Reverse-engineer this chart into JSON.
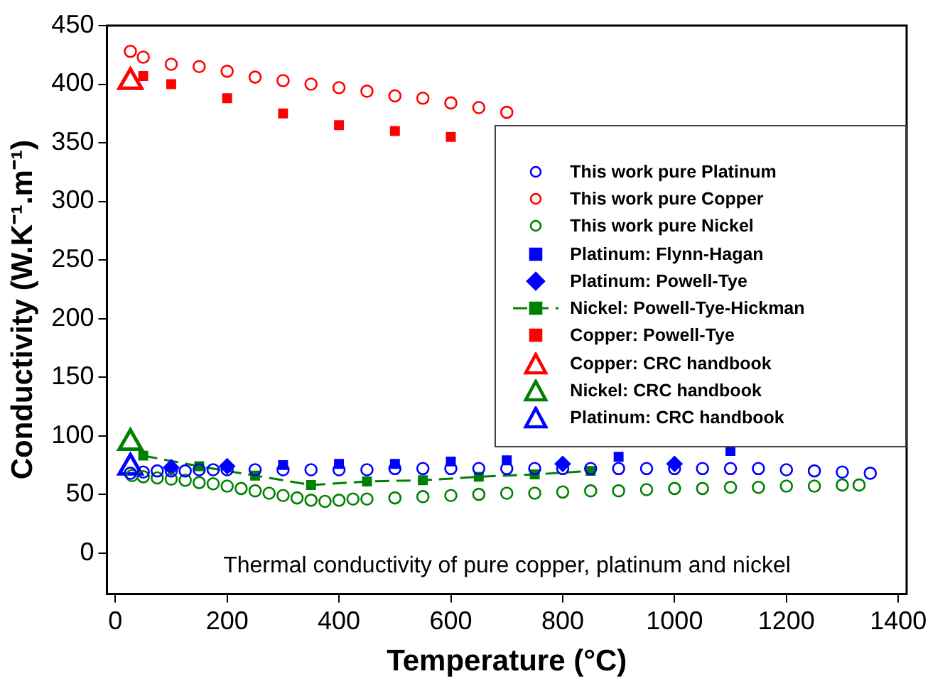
{
  "chart_data": {
    "type": "scatter",
    "xlabel": "Temperature (°C)",
    "ylabel": "Conductivity (W.K⁻¹.m⁻¹)",
    "xlim": [
      -15,
      1415
    ],
    "ylim": [
      -35,
      450
    ],
    "xticks": [
      0,
      200,
      400,
      600,
      800,
      1000,
      1200,
      1400
    ],
    "yticks": [
      0,
      50,
      100,
      150,
      200,
      250,
      300,
      350,
      400,
      450
    ],
    "legend": "right",
    "grid": false,
    "annotations": [
      "Thermal conductivity of pure copper, platinum and nickel"
    ],
    "series": [
      {
        "name": "This work pure Platinum",
        "color": "#0000ff",
        "marker": "circle",
        "x": [
          27,
          50,
          75,
          100,
          125,
          150,
          175,
          200,
          250,
          300,
          350,
          400,
          450,
          500,
          550,
          600,
          650,
          700,
          750,
          800,
          850,
          900,
          950,
          1000,
          1050,
          1100,
          1150,
          1200,
          1250,
          1300,
          1350
        ],
        "values": [
          68,
          69,
          70,
          70,
          70,
          71,
          71,
          71,
          71,
          71,
          71,
          71,
          71,
          72,
          72,
          72,
          72,
          72,
          72,
          72,
          72,
          72,
          72,
          72,
          72,
          72,
          72,
          71,
          70,
          69,
          68
        ]
      },
      {
        "name": "This work pure Copper",
        "color": "#ff0000",
        "marker": "circle",
        "x": [
          27,
          50,
          100,
          150,
          200,
          250,
          300,
          350,
          400,
          450,
          500,
          550,
          600,
          650,
          700
        ],
        "values": [
          428,
          423,
          417,
          415,
          411,
          406,
          403,
          400,
          397,
          394,
          390,
          388,
          384,
          380,
          376
        ]
      },
      {
        "name": "This work pure Nickel",
        "color": "#008000",
        "marker": "circle",
        "x": [
          30,
          50,
          75,
          100,
          125,
          150,
          175,
          200,
          225,
          250,
          275,
          300,
          325,
          350,
          375,
          400,
          425,
          450,
          500,
          550,
          600,
          650,
          700,
          750,
          800,
          850,
          900,
          950,
          1000,
          1050,
          1100,
          1150,
          1200,
          1250,
          1300,
          1330
        ],
        "values": [
          66,
          65,
          64,
          63,
          62,
          60,
          59,
          57,
          55,
          53,
          51,
          49,
          47,
          45,
          44,
          45,
          46,
          46,
          47,
          48,
          49,
          50,
          51,
          51,
          52,
          53,
          53,
          54,
          55,
          55,
          56,
          56,
          57,
          57,
          58,
          58
        ]
      },
      {
        "name": "Platinum: Flynn-Hagan",
        "color": "#0000ff",
        "marker": "square",
        "x": [
          300,
          400,
          500,
          600,
          700,
          900,
          1100
        ],
        "values": [
          75,
          76,
          76,
          78,
          79,
          82,
          87
        ]
      },
      {
        "name": "Platinum: Powell-Tye",
        "color": "#0000ff",
        "marker": "diamond",
        "x": [
          100,
          200,
          800,
          1000
        ],
        "values": [
          73,
          74,
          76,
          76
        ]
      },
      {
        "name": "Nickel: Powell-Tye-Hickman",
        "type": "line",
        "line_style": "dashed",
        "color": "#008000",
        "marker": "square",
        "x": [
          50,
          150,
          250,
          350,
          450,
          550,
          650,
          750,
          850
        ],
        "values": [
          83,
          74,
          66,
          58,
          61,
          62,
          65,
          67,
          70
        ]
      },
      {
        "name": "Copper: Powell-Tye",
        "color": "#ff0000",
        "marker": "square",
        "x": [
          50,
          100,
          200,
          300,
          400,
          500,
          600
        ],
        "values": [
          407,
          400,
          388,
          375,
          365,
          360,
          355
        ]
      },
      {
        "name": "Copper: CRC handbook",
        "color": "#ff0000",
        "marker": "triangle",
        "x": [
          27
        ],
        "values": [
          402
        ]
      },
      {
        "name": "Nickel: CRC handbook",
        "color": "#008000",
        "marker": "triangle",
        "x": [
          27
        ],
        "values": [
          94
        ]
      },
      {
        "name": "Platinum: CRC handbook",
        "color": "#0000ff",
        "marker": "triangle",
        "x": [
          27
        ],
        "values": [
          73
        ]
      }
    ]
  }
}
